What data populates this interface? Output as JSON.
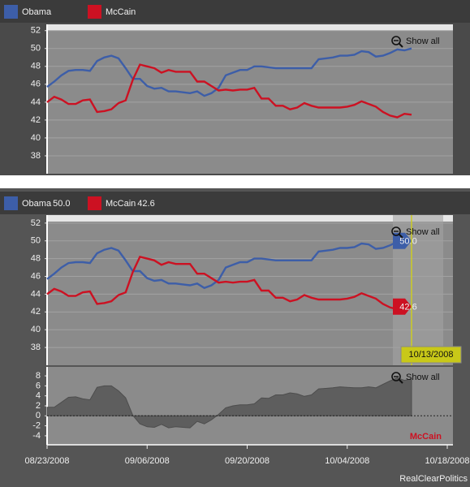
{
  "chart_data": [
    {
      "type": "line",
      "x": [
        "08/23/2008",
        "08/24/2008",
        "08/25/2008",
        "08/26/2008",
        "08/27/2008",
        "08/28/2008",
        "08/29/2008",
        "08/30/2008",
        "08/31/2008",
        "09/01/2008",
        "09/02/2008",
        "09/03/2008",
        "09/04/2008",
        "09/05/2008",
        "09/06/2008",
        "09/07/2008",
        "09/08/2008",
        "09/09/2008",
        "09/10/2008",
        "09/11/2008",
        "09/12/2008",
        "09/13/2008",
        "09/14/2008",
        "09/15/2008",
        "09/16/2008",
        "09/17/2008",
        "09/18/2008",
        "09/19/2008",
        "09/20/2008",
        "09/21/2008",
        "09/22/2008",
        "09/23/2008",
        "09/24/2008",
        "09/25/2008",
        "09/26/2008",
        "09/27/2008",
        "09/28/2008",
        "09/29/2008",
        "09/30/2008",
        "10/01/2008",
        "10/02/2008",
        "10/03/2008",
        "10/04/2008",
        "10/05/2008",
        "10/06/2008",
        "10/07/2008",
        "10/08/2008",
        "10/09/2008",
        "10/10/2008",
        "10/11/2008",
        "10/12/2008",
        "10/13/2008"
      ],
      "xlim": [
        "08/23/2008",
        "10/18/2008"
      ],
      "series": [
        {
          "name": "Obama",
          "color": "#3d5ea8",
          "values": [
            45.7,
            46.3,
            47.0,
            47.5,
            47.6,
            47.6,
            47.5,
            48.6,
            49.0,
            49.2,
            48.9,
            47.8,
            46.6,
            46.6,
            45.8,
            45.5,
            45.6,
            45.2,
            45.2,
            45.1,
            45.0,
            45.2,
            44.7,
            45.0,
            45.6,
            47.0,
            47.3,
            47.6,
            47.6,
            48.0,
            48.0,
            47.9,
            47.8,
            47.8,
            47.8,
            47.8,
            47.8,
            47.8,
            48.8,
            48.9,
            49.0,
            49.2,
            49.2,
            49.3,
            49.7,
            49.6,
            49.1,
            49.2,
            49.5,
            49.9,
            49.8,
            50.0
          ]
        },
        {
          "name": "McCain",
          "color": "#cc1122",
          "values": [
            44.0,
            44.6,
            44.3,
            43.8,
            43.8,
            44.2,
            44.3,
            42.9,
            43.0,
            43.2,
            43.9,
            44.2,
            46.5,
            48.2,
            48.0,
            47.8,
            47.3,
            47.6,
            47.4,
            47.4,
            47.4,
            46.3,
            46.3,
            45.8,
            45.3,
            45.4,
            45.3,
            45.4,
            45.4,
            45.6,
            44.4,
            44.4,
            43.6,
            43.6,
            43.2,
            43.4,
            43.9,
            43.6,
            43.4,
            43.4,
            43.4,
            43.4,
            43.5,
            43.7,
            44.1,
            43.8,
            43.5,
            42.9,
            42.5,
            42.3,
            42.7,
            42.6
          ]
        }
      ],
      "ylim": [
        36,
        52.7
      ],
      "yticks": [
        38,
        40,
        42,
        44,
        46,
        48,
        50,
        52
      ],
      "grid": true,
      "button": "Show all"
    },
    {
      "type": "line",
      "x": [
        "08/23/2008",
        "08/24/2008",
        "08/25/2008",
        "08/26/2008",
        "08/27/2008",
        "08/28/2008",
        "08/29/2008",
        "08/30/2008",
        "08/31/2008",
        "09/01/2008",
        "09/02/2008",
        "09/03/2008",
        "09/04/2008",
        "09/05/2008",
        "09/06/2008",
        "09/07/2008",
        "09/08/2008",
        "09/09/2008",
        "09/10/2008",
        "09/11/2008",
        "09/12/2008",
        "09/13/2008",
        "09/14/2008",
        "09/15/2008",
        "09/16/2008",
        "09/17/2008",
        "09/18/2008",
        "09/19/2008",
        "09/20/2008",
        "09/21/2008",
        "09/22/2008",
        "09/23/2008",
        "09/24/2008",
        "09/25/2008",
        "09/26/2008",
        "09/27/2008",
        "09/28/2008",
        "09/29/2008",
        "09/30/2008",
        "10/01/2008",
        "10/02/2008",
        "10/03/2008",
        "10/04/2008",
        "10/05/2008",
        "10/06/2008",
        "10/07/2008",
        "10/08/2008",
        "10/09/2008",
        "10/10/2008",
        "10/11/2008",
        "10/12/2008",
        "10/13/2008"
      ],
      "xlim": [
        "08/23/2008",
        "10/18/2008"
      ],
      "series": [
        {
          "name": "Obama",
          "color": "#3d5ea8",
          "readout": "50.0",
          "values": [
            45.7,
            46.3,
            47.0,
            47.5,
            47.6,
            47.6,
            47.5,
            48.6,
            49.0,
            49.2,
            48.9,
            47.8,
            46.6,
            46.6,
            45.8,
            45.5,
            45.6,
            45.2,
            45.2,
            45.1,
            45.0,
            45.2,
            44.7,
            45.0,
            45.6,
            47.0,
            47.3,
            47.6,
            47.6,
            48.0,
            48.0,
            47.9,
            47.8,
            47.8,
            47.8,
            47.8,
            47.8,
            47.8,
            48.8,
            48.9,
            49.0,
            49.2,
            49.2,
            49.3,
            49.7,
            49.6,
            49.1,
            49.2,
            49.5,
            49.9,
            49.8,
            50.0
          ]
        },
        {
          "name": "McCain",
          "color": "#cc1122",
          "readout": "42.6",
          "values": [
            44.0,
            44.6,
            44.3,
            43.8,
            43.8,
            44.2,
            44.3,
            42.9,
            43.0,
            43.2,
            43.9,
            44.2,
            46.5,
            48.2,
            48.0,
            47.8,
            47.3,
            47.6,
            47.4,
            47.4,
            47.4,
            46.3,
            46.3,
            45.8,
            45.3,
            45.4,
            45.3,
            45.4,
            45.4,
            45.6,
            44.4,
            44.4,
            43.6,
            43.6,
            43.2,
            43.4,
            43.9,
            43.6,
            43.4,
            43.4,
            43.4,
            43.4,
            43.5,
            43.7,
            44.1,
            43.8,
            43.5,
            42.9,
            42.5,
            42.3,
            42.7,
            42.6
          ]
        }
      ],
      "ylim": [
        36,
        52.9
      ],
      "yticks": [
        38,
        40,
        42,
        44,
        46,
        48,
        50,
        52
      ],
      "grid": true,
      "button": "Show all"
    },
    {
      "type": "area",
      "x": [
        "08/23/2008",
        "08/24/2008",
        "08/25/2008",
        "08/26/2008",
        "08/27/2008",
        "08/28/2008",
        "08/29/2008",
        "08/30/2008",
        "08/31/2008",
        "09/01/2008",
        "09/02/2008",
        "09/03/2008",
        "09/04/2008",
        "09/05/2008",
        "09/06/2008",
        "09/07/2008",
        "09/08/2008",
        "09/09/2008",
        "09/10/2008",
        "09/11/2008",
        "09/12/2008",
        "09/13/2008",
        "09/14/2008",
        "09/15/2008",
        "09/16/2008",
        "09/17/2008",
        "09/18/2008",
        "09/19/2008",
        "09/20/2008",
        "09/21/2008",
        "09/22/2008",
        "09/23/2008",
        "09/24/2008",
        "09/25/2008",
        "09/26/2008",
        "09/27/2008",
        "09/28/2008",
        "09/29/2008",
        "09/30/2008",
        "10/01/2008",
        "10/02/2008",
        "10/03/2008",
        "10/04/2008",
        "10/05/2008",
        "10/06/2008",
        "10/07/2008",
        "10/08/2008",
        "10/09/2008",
        "10/10/2008",
        "10/11/2008",
        "10/12/2008",
        "10/13/2008"
      ],
      "values": [
        1.7,
        1.7,
        2.7,
        3.7,
        3.8,
        3.4,
        3.2,
        5.7,
        6.0,
        6.0,
        5.0,
        3.6,
        0.1,
        -1.6,
        -2.2,
        -2.3,
        -1.7,
        -2.4,
        -2.2,
        -2.3,
        -2.4,
        -1.1,
        -1.6,
        -0.8,
        0.3,
        1.6,
        2.0,
        2.2,
        2.2,
        2.4,
        3.6,
        3.5,
        4.2,
        4.2,
        4.6,
        4.4,
        3.9,
        4.2,
        5.4,
        5.5,
        5.6,
        5.8,
        5.7,
        5.6,
        5.6,
        5.8,
        5.6,
        6.3,
        7.0,
        7.6,
        7.1,
        7.4
      ],
      "color": "#5e5e5e",
      "ylim": [
        -5.8,
        9.8
      ],
      "yticks": [
        -4,
        -2,
        0,
        2,
        4,
        6,
        8
      ],
      "xlim": [
        "08/23/2008",
        "10/18/2008"
      ],
      "xticks": [
        "08/23/2008",
        "09/06/2008",
        "09/20/2008",
        "10/04/2008",
        "10/18/2008"
      ],
      "button": "Show all",
      "annotation": "McCain",
      "annotation_color": "#cc1122"
    }
  ],
  "source": "RealClearPolitics"
}
